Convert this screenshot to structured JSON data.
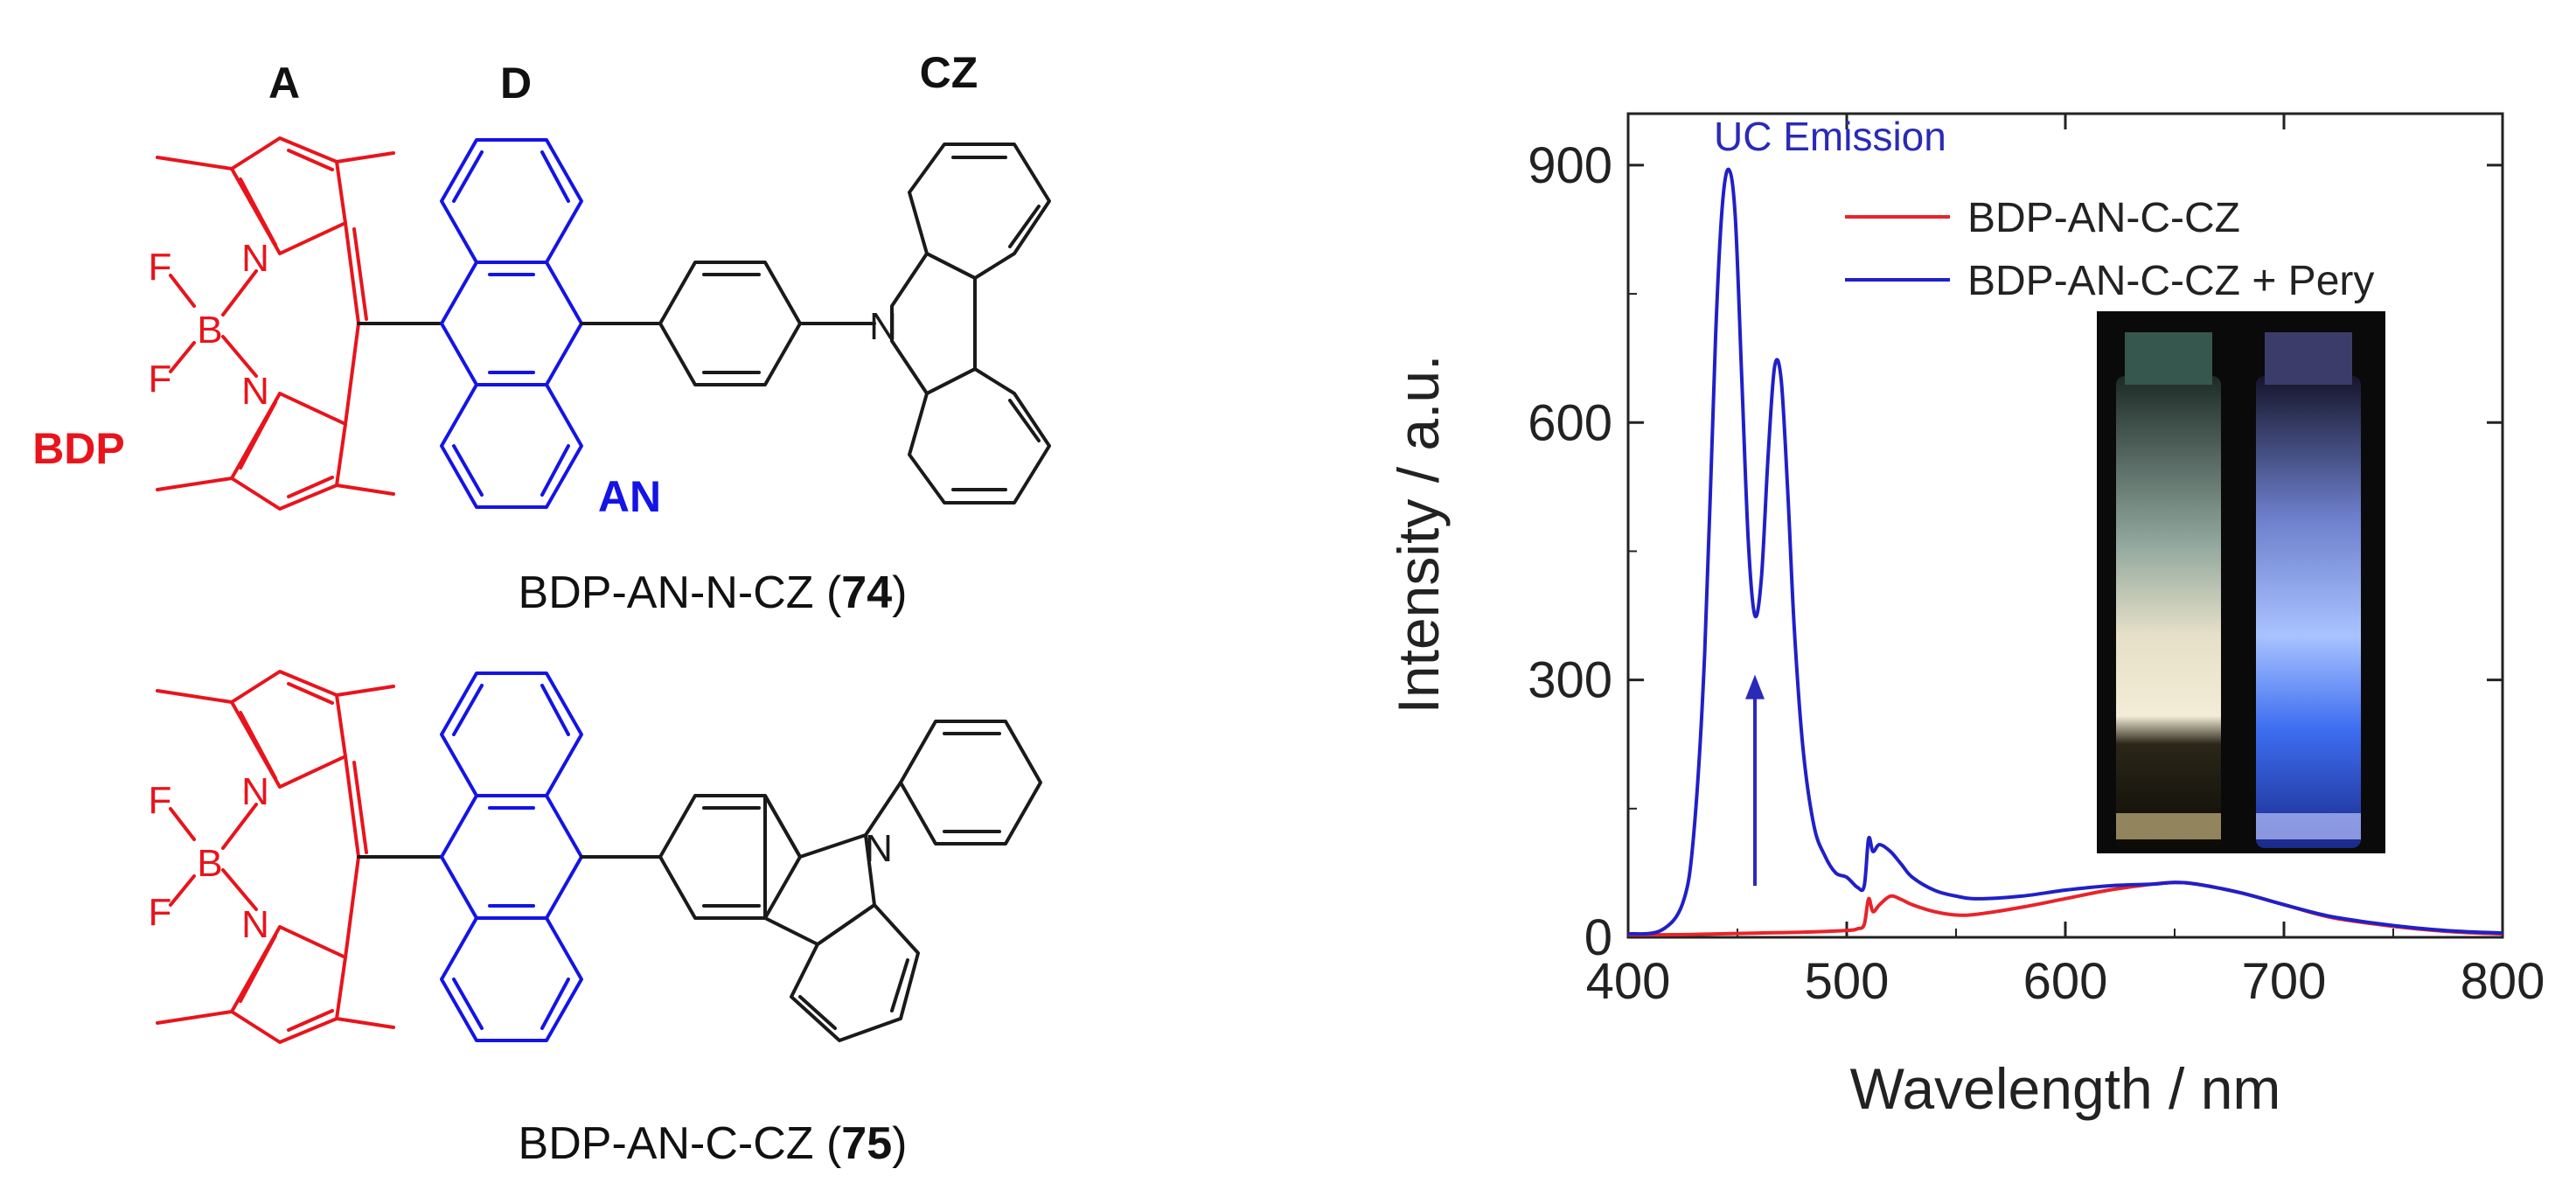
{
  "structures": {
    "labels": {
      "acceptor": "A",
      "donor": "D",
      "carbazole": "CZ",
      "bodipy": "BDP",
      "anthracene": "AN",
      "fluorine_top": "F",
      "fluorine_bottom": "F",
      "boron": "B",
      "nitrogen": "N"
    },
    "compound1": {
      "name": "BDP-AN-N-CZ (",
      "number": "74",
      "suffix": ")"
    },
    "compound2": {
      "name": "BDP-AN-C-CZ (",
      "number": "75",
      "suffix": ")"
    },
    "colors": {
      "bodipy": "#e8141c",
      "anthracene": "#1414e6",
      "other": "#1a1a1a"
    }
  },
  "chart_data": {
    "type": "line",
    "annotation": "UC Emission",
    "xlabel": "Wavelength / nm",
    "ylabel": "Intensity / a.u.",
    "xlim": [
      400,
      800
    ],
    "ylim": [
      0,
      960
    ],
    "xticks": [
      400,
      500,
      600,
      700,
      800
    ],
    "yticks": [
      0,
      300,
      600,
      900
    ],
    "grid": false,
    "legend_position": "top-right",
    "series": [
      {
        "name": "BDP-AN-C-CZ",
        "color": "#e8242a",
        "x": [
          400,
          420,
          440,
          460,
          480,
          500,
          505,
          508,
          510,
          512,
          515,
          520,
          525,
          530,
          540,
          550,
          560,
          580,
          600,
          620,
          640,
          650,
          660,
          680,
          700,
          720,
          740,
          760,
          780,
          800
        ],
        "y": [
          3,
          3,
          4,
          5,
          6,
          8,
          10,
          15,
          45,
          30,
          38,
          48,
          44,
          38,
          30,
          26,
          27,
          35,
          45,
          55,
          62,
          64,
          62,
          52,
          38,
          24,
          16,
          10,
          6,
          4
        ]
      },
      {
        "name": "BDP-AN-C-CZ + Pery",
        "color": "#2020c8",
        "x": [
          400,
          415,
          425,
          430,
          435,
          440,
          443,
          446,
          449,
          452,
          455,
          458,
          461,
          464,
          467,
          470,
          473,
          476,
          480,
          485,
          490,
          495,
          500,
          505,
          508,
          510,
          512,
          515,
          520,
          525,
          530,
          540,
          550,
          560,
          580,
          600,
          620,
          640,
          650,
          660,
          680,
          700,
          720,
          740,
          760,
          780,
          800
        ],
        "y": [
          4,
          8,
          40,
          120,
          330,
          700,
          850,
          895,
          840,
          650,
          460,
          375,
          420,
          560,
          665,
          650,
          520,
          360,
          220,
          130,
          95,
          75,
          70,
          58,
          60,
          115,
          100,
          108,
          100,
          85,
          70,
          55,
          48,
          45,
          48,
          55,
          60,
          62,
          64,
          62,
          52,
          38,
          25,
          17,
          11,
          7,
          5
        ]
      }
    ],
    "arrow": {
      "x": 458,
      "y_from": 60,
      "y_to": 300
    }
  }
}
